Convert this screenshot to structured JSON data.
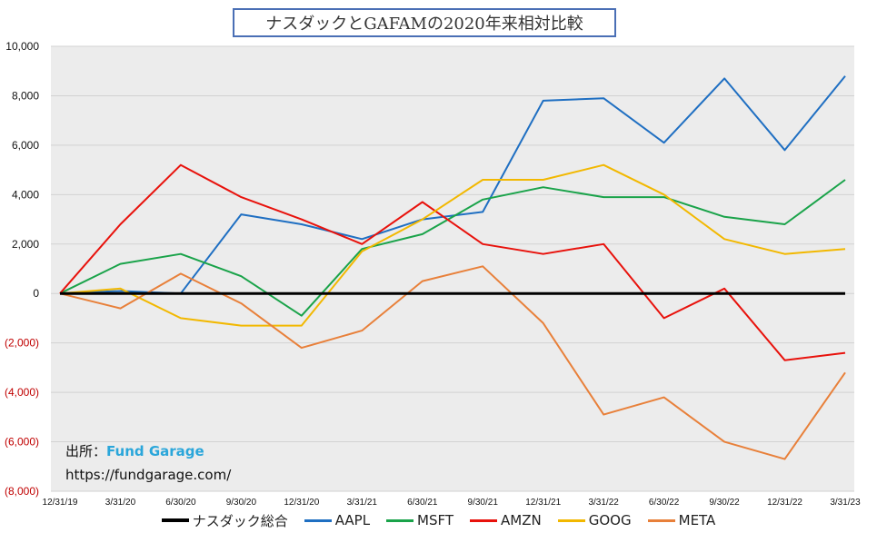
{
  "title": "ナスダックとGAFAMの2020年来相対比較",
  "source": {
    "label": "出所：",
    "brand": "Fund Garage",
    "url": "https://fundgarage.com/"
  },
  "chart_data": {
    "type": "line",
    "title": "ナスダックとGAFAMの2020年来相対比較",
    "ylim": [
      -8000,
      10000
    ],
    "y_ticks": [
      {
        "value": 10000,
        "label": "10,000"
      },
      {
        "value": 8000,
        "label": "8,000"
      },
      {
        "value": 6000,
        "label": "6,000"
      },
      {
        "value": 4000,
        "label": "4,000"
      },
      {
        "value": 2000,
        "label": "2,000"
      },
      {
        "value": 0,
        "label": "0"
      },
      {
        "value": -2000,
        "label": "(2,000)"
      },
      {
        "value": -4000,
        "label": "(4,000)"
      },
      {
        "value": -6000,
        "label": "(6,000)"
      },
      {
        "value": -8000,
        "label": "(8,000)"
      }
    ],
    "x_labels": [
      "12/31/19",
      "3/31/20",
      "6/30/20",
      "9/30/20",
      "12/31/20",
      "3/31/21",
      "6/30/21",
      "9/30/21",
      "12/31/21",
      "3/31/22",
      "6/30/22",
      "9/30/22",
      "12/31/22",
      "3/31/23"
    ],
    "grid": "horizontal",
    "legend_position": "bottom",
    "series": [
      {
        "name": "ナスダック総合",
        "color": "#000000",
        "values": [
          0,
          0,
          0,
          0,
          0,
          0,
          0,
          0,
          0,
          0,
          0,
          0,
          0,
          0
        ]
      },
      {
        "name": "AAPL",
        "color": "#1f6fc2",
        "values": [
          0,
          100,
          0,
          3200,
          2800,
          2200,
          3000,
          3300,
          7800,
          7900,
          6100,
          8700,
          5800,
          8800
        ]
      },
      {
        "name": "MSFT",
        "color": "#1aa34a",
        "values": [
          0,
          1200,
          1600,
          700,
          -900,
          1800,
          2400,
          3800,
          4300,
          3900,
          3900,
          3100,
          2800,
          4600
        ]
      },
      {
        "name": "AMZN",
        "color": "#e8120c",
        "values": [
          0,
          2800,
          5200,
          3900,
          3000,
          2000,
          3700,
          2000,
          1600,
          2000,
          -1000,
          200,
          -2700,
          -2400
        ]
      },
      {
        "name": "GOOG",
        "color": "#f2b800",
        "values": [
          0,
          200,
          -1000,
          -1300,
          -1300,
          1700,
          3000,
          4600,
          4600,
          5200,
          4000,
          2200,
          1600,
          1800
        ]
      },
      {
        "name": "META",
        "color": "#e8803a",
        "values": [
          0,
          -600,
          800,
          -400,
          -2200,
          -1500,
          500,
          1100,
          -1200,
          -4900,
          -4200,
          -6000,
          -6700,
          -3200
        ]
      }
    ]
  }
}
